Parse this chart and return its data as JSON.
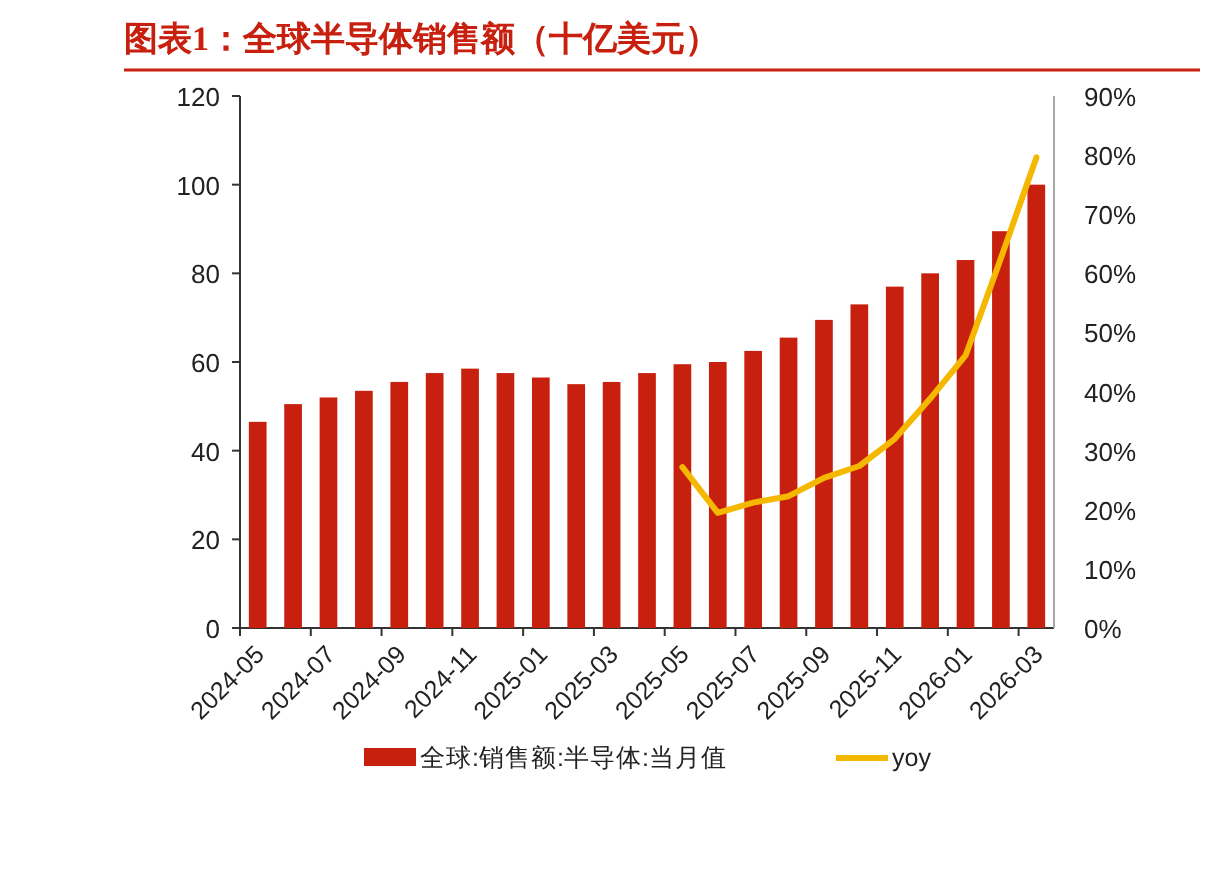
{
  "chart_data": {
    "type": "bar",
    "title": "图表1：全球半导体销售额（十亿美元）",
    "categories": [
      "2024-05",
      null,
      "2024-07",
      null,
      "2024-09",
      null,
      "2024-11",
      null,
      "2025-01",
      null,
      "2025-03",
      null,
      "2025-05",
      null,
      "2025-07",
      null,
      "2025-09",
      null,
      "2025-11",
      null,
      "2026-01",
      null,
      "2026-03"
    ],
    "series": [
      {
        "name": "全球:销售额:半导体:当月值",
        "color": "#c8200e",
        "values": [
          46.5,
          50.5,
          52,
          53.5,
          55.5,
          57.5,
          58.5,
          57.5,
          56.5,
          55,
          55.5,
          57.5,
          59.5,
          60,
          62.5,
          65.5,
          69.5,
          73,
          77,
          80,
          83,
          89.5,
          100
        ]
      },
      {
        "name": "yoy",
        "type": "line",
        "axis": "y2",
        "color": "#f5b800",
        "values": [
          null,
          null,
          null,
          null,
          null,
          null,
          null,
          null,
          null,
          null,
          null,
          null,
          27.2,
          19.5,
          21.2,
          22.3,
          25.4,
          27.4,
          32,
          38.8,
          46.1,
          62.6,
          79.6
        ]
      }
    ],
    "ylim": [
      0,
      120
    ],
    "yticks": [
      0,
      20,
      40,
      60,
      80,
      100,
      120
    ],
    "y2lim": [
      0,
      90
    ],
    "y2ticks": [
      {
        "value": 0,
        "label": "0%"
      },
      {
        "value": 10,
        "label": "10%"
      },
      {
        "value": 20,
        "label": "20%"
      },
      {
        "value": 30,
        "label": "30%"
      },
      {
        "value": 40,
        "label": "40%"
      },
      {
        "value": 50,
        "label": "50%"
      },
      {
        "value": 60,
        "label": "60%"
      },
      {
        "value": 70,
        "label": "70%"
      },
      {
        "value": 80,
        "label": "80%"
      },
      {
        "value": 90,
        "label": "90%"
      }
    ],
    "legend": "bottom"
  }
}
